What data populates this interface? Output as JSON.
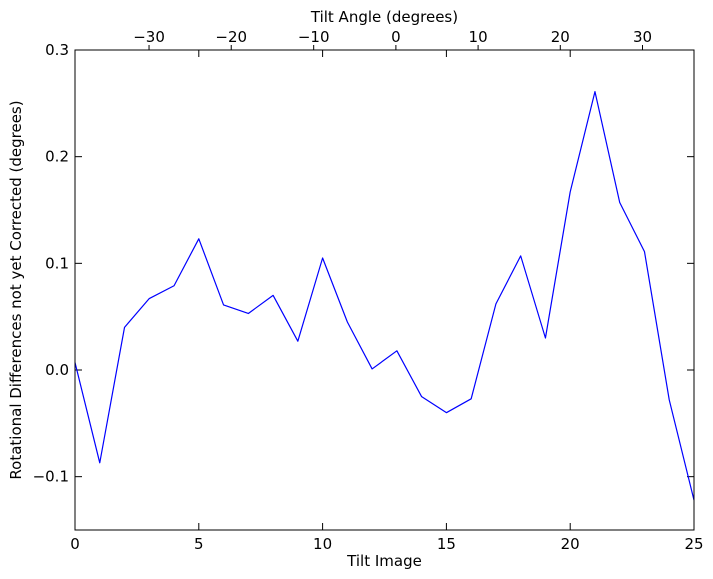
{
  "chart_data": {
    "type": "line",
    "xlabel": "Tilt Image",
    "ylabel": "Rotational Differences not yet Corrected (degrees)",
    "x2label": "Tilt Angle (degrees)",
    "xlim": [
      0,
      25
    ],
    "ylim": [
      -0.15,
      0.3
    ],
    "x_ticks": [
      0,
      5,
      10,
      15,
      20,
      25
    ],
    "x_tick_labels": [
      "0",
      "5",
      "10",
      "15",
      "20",
      "25"
    ],
    "y_ticks": [
      -0.1,
      0.0,
      0.1,
      0.2,
      0.3
    ],
    "y_tick_labels": [
      "−0.1",
      "0.0",
      "0.1",
      "0.2",
      "0.3"
    ],
    "x2_ticks": [
      {
        "position": 2.99,
        "label": "−30"
      },
      {
        "position": 6.31,
        "label": "−20"
      },
      {
        "position": 9.64,
        "label": "−10"
      },
      {
        "position": 12.96,
        "label": "0"
      },
      {
        "position": 16.28,
        "label": "10"
      },
      {
        "position": 19.6,
        "label": "20"
      },
      {
        "position": 22.92,
        "label": "30"
      }
    ],
    "grid": false,
    "line_color": "#0000ff",
    "series": [
      {
        "x": [
          0,
          1,
          2,
          3,
          4,
          5,
          6,
          7,
          8,
          9,
          10,
          11,
          12,
          13,
          14,
          15,
          16,
          17,
          18,
          19,
          20,
          21,
          22,
          23,
          24,
          25
        ],
        "y": [
          0.007,
          -0.087,
          0.04,
          0.067,
          0.079,
          0.123,
          0.061,
          0.053,
          0.07,
          0.027,
          0.105,
          0.045,
          0.001,
          0.018,
          -0.025,
          -0.04,
          -0.027,
          0.062,
          0.107,
          0.03,
          0.167,
          0.261,
          0.157,
          0.111,
          -0.028,
          -0.122
        ]
      }
    ]
  }
}
